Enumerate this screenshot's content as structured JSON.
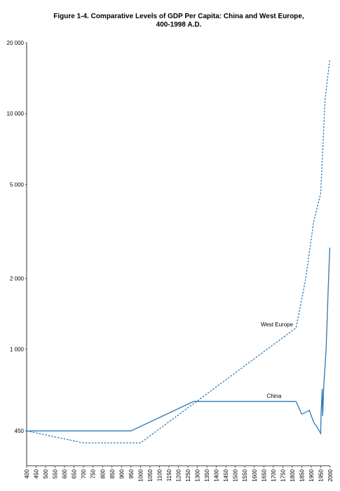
{
  "chart_data": {
    "type": "line",
    "title": [
      "Figure 1-4. Comparative Levels of GDP Per Capita: China and West Europe,",
      "400-1998 A.D."
    ],
    "log_scale_y": true,
    "xlim": [
      400,
      2000
    ],
    "xticks": [
      400,
      450,
      500,
      550,
      600,
      650,
      700,
      750,
      800,
      850,
      900,
      950,
      1000,
      1050,
      1100,
      1150,
      1200,
      1250,
      1300,
      1350,
      1400,
      1450,
      1500,
      1550,
      1600,
      1650,
      1700,
      1750,
      1800,
      1850,
      1900,
      1950,
      2000
    ],
    "ylim": [
      320,
      20000
    ],
    "yticks": [
      450,
      {
        "value": 1000,
        "label": "1 000"
      },
      {
        "value": 2000,
        "label": "2 000"
      },
      {
        "value": 5000,
        "label": "5 000"
      },
      {
        "value": 10000,
        "label": "10 000"
      },
      {
        "value": 20000,
        "label": "20 000"
      }
    ],
    "series": [
      {
        "name": "West Europe",
        "color": "#2a7ab8",
        "dashed": true,
        "x": [
          400,
          700,
          1000,
          1820,
          1870,
          1913,
          1950,
          1973,
          1998
        ],
        "values": [
          450,
          400,
          400,
          1232,
          1974,
          3473,
          4594,
          11534,
          17000
        ]
      },
      {
        "name": "China",
        "color": "#2a7ab8",
        "dashed": false,
        "x": [
          400,
          950,
          1280,
          1820,
          1850,
          1890,
          1913,
          1929,
          1950,
          1952,
          1955,
          1958,
          1960,
          1962,
          1966,
          1970,
          1978,
          1985,
          1990,
          1998
        ],
        "values": [
          450,
          450,
          600,
          600,
          530,
          550,
          490,
          470,
          439,
          540,
          600,
          680,
          520,
          560,
          700,
          780,
          979,
          1400,
          1850,
          2700
        ]
      }
    ]
  }
}
